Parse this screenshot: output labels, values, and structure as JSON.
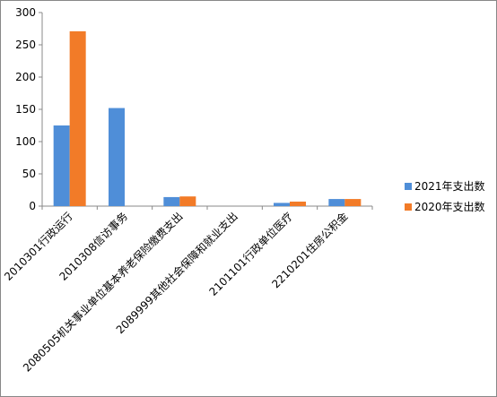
{
  "chart_data": {
    "type": "bar",
    "categories": [
      "2010301行政运行",
      "2010308信访事务",
      "2080505机关事业单位基本养老保险缴费支出",
      "2089999其他社会保障和就业支出",
      "2101101行政单位医疗",
      "2210201住房公积金"
    ],
    "series": [
      {
        "name": "2021年支出数",
        "color": "#4f8ed8",
        "values": [
          125,
          152,
          14,
          0,
          5,
          11
        ]
      },
      {
        "name": "2020年支出数",
        "color": "#f27b28",
        "values": [
          271,
          0,
          15,
          0,
          7,
          11
        ]
      }
    ],
    "ylim": [
      0,
      300
    ],
    "yticks": [
      0,
      50,
      100,
      150,
      200,
      250,
      300
    ],
    "legend": "right"
  }
}
